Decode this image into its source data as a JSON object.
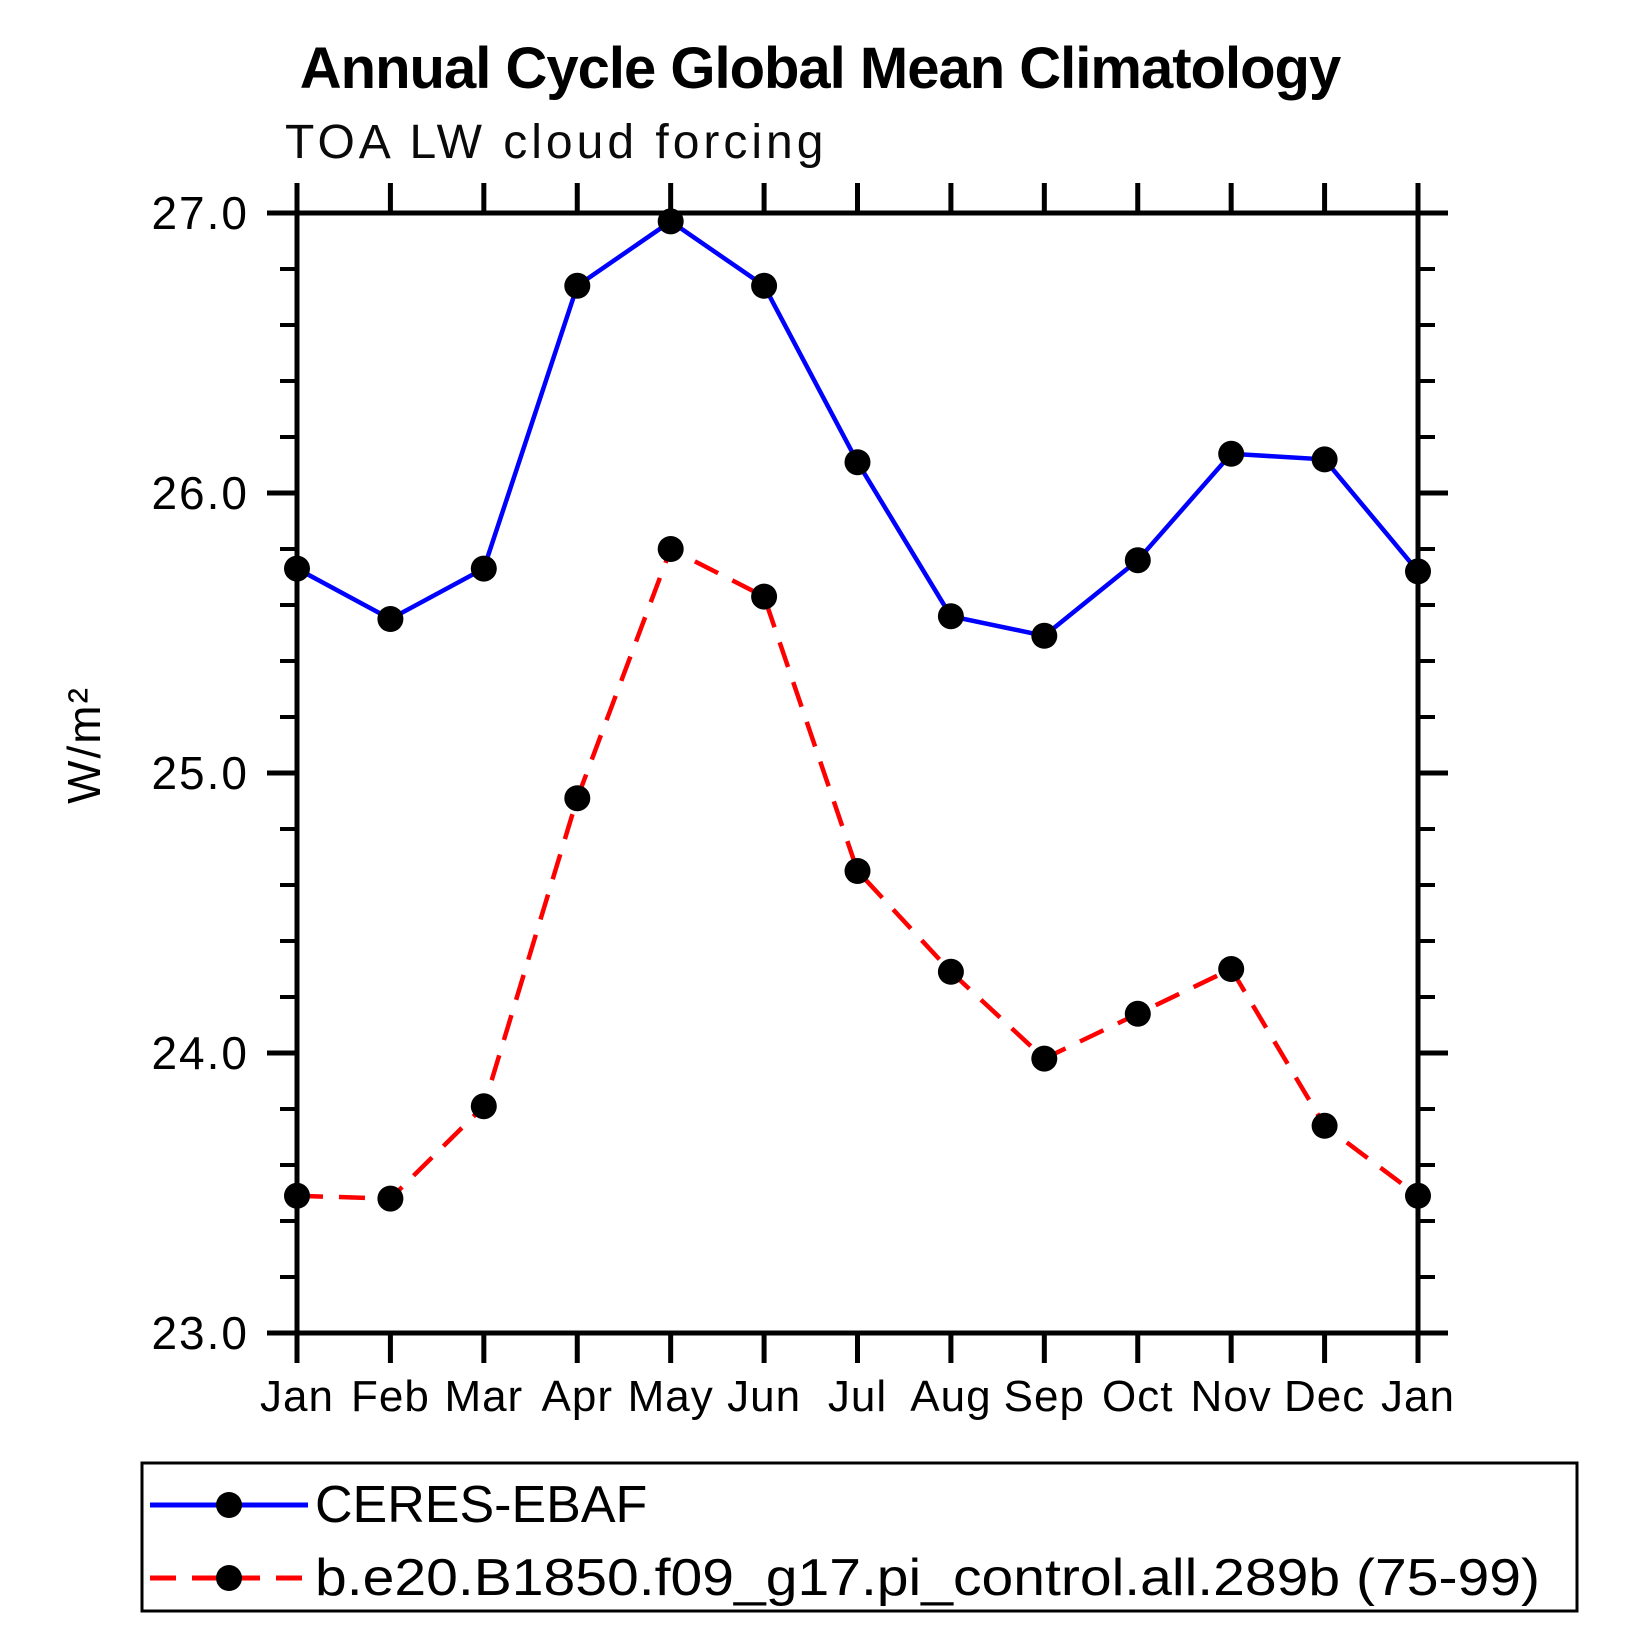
{
  "page": {
    "background": "#ffffff",
    "frame_color": "#000000"
  },
  "chart_data": {
    "type": "line",
    "title": "Annual Cycle Global Mean Climatology",
    "subtitle": "TOA LW cloud forcing",
    "ylabel": "W/m²",
    "xlabel": "",
    "x_categories": [
      "Jan",
      "Feb",
      "Mar",
      "Apr",
      "May",
      "Jun",
      "Jul",
      "Aug",
      "Sep",
      "Oct",
      "Nov",
      "Dec",
      "Jan"
    ],
    "ylim": [
      23.0,
      27.0
    ],
    "ytick_major": [
      23.0,
      24.0,
      25.0,
      26.0,
      27.0
    ],
    "ytick_major_labels": [
      "23.0",
      "24.0",
      "25.0",
      "26.0",
      "27.0"
    ],
    "ytick_minor_step": 0.2,
    "grid": false,
    "legend_position": "bottom",
    "marker": {
      "shape": "circle",
      "color": "#000000"
    },
    "series": [
      {
        "name": "CERES-EBAF",
        "color": "#0000ff",
        "line_style": "solid",
        "values": [
          25.73,
          25.55,
          25.73,
          26.74,
          26.97,
          26.74,
          26.11,
          25.56,
          25.49,
          25.76,
          26.14,
          26.12,
          25.72
        ]
      },
      {
        "name": "b.e20.B1850.f09_g17.pi_control.all.289b (75-99)",
        "color": "#ff0000",
        "line_style": "dashed",
        "values": [
          23.49,
          23.48,
          23.81,
          24.91,
          25.8,
          25.63,
          24.65,
          24.29,
          23.98,
          24.14,
          24.3,
          23.74,
          23.49
        ]
      }
    ]
  }
}
